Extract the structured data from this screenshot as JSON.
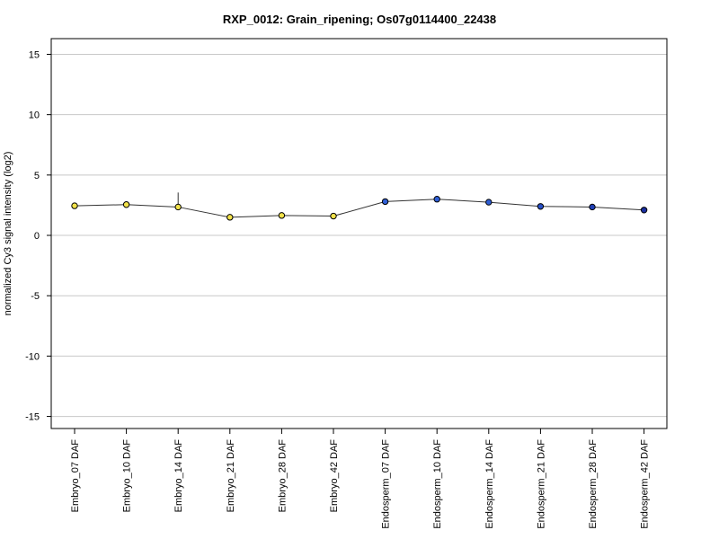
{
  "chart_data": {
    "type": "line",
    "title": "RXP_0012: Grain_ripening; Os07g0114400_22438",
    "xlabel": "",
    "ylabel": "normalized Cy3 signal intensity (log2)",
    "ylim": [
      -16,
      16.3
    ],
    "yticks": [
      -15,
      -10,
      -5,
      0,
      5,
      10,
      15
    ],
    "ytick_labels": [
      "-15",
      "-10",
      "-5",
      "0",
      "5",
      "10",
      "15"
    ],
    "grid": true,
    "categories": [
      "Embryo_07 DAF",
      "Embryo_10 DAF",
      "Embryo_14 DAF",
      "Embryo_21 DAF",
      "Embryo_28 DAF",
      "Embryo_42 DAF",
      "Endosperm_07 DAF",
      "Endosperm_10 DAF",
      "Endosperm_14 DAF",
      "Endosperm_21 DAF",
      "Endosperm_28 DAF",
      "Endosperm_42 DAF"
    ],
    "series": [
      {
        "values": [
          2.45,
          2.55,
          2.35,
          1.5,
          1.65,
          1.6,
          2.8,
          3.0,
          2.75,
          2.4,
          2.35,
          2.1
        ],
        "error_upper": [
          null,
          null,
          3.55,
          null,
          null,
          null,
          null,
          null,
          null,
          null,
          null,
          null
        ],
        "point_colors": [
          "#f2e24a",
          "#f2e24a",
          "#f2e24a",
          "#f2e24a",
          "#f2e24a",
          "#f2e24a",
          "#2f5fd6",
          "#2f5fd6",
          "#2f5fd6",
          "#2850c8",
          "#1f3fb5",
          "#1a2fa0"
        ],
        "line_color": "#333333"
      }
    ]
  }
}
